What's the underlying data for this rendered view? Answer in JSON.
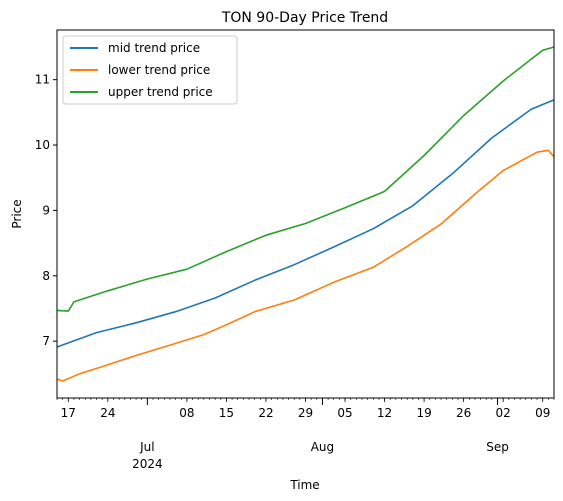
{
  "chart_data": {
    "type": "line",
    "title": "TON 90-Day Price Trend",
    "xlabel": "Time",
    "ylabel": "Price",
    "xlim": [
      "2024-06-15",
      "2024-09-11"
    ],
    "ylim": [
      6.13,
      11.76
    ],
    "yticks": [
      7,
      8,
      9,
      10,
      11
    ],
    "xticks_minor": [
      {
        "date": "2024-06-17",
        "label": "17"
      },
      {
        "date": "2024-06-24",
        "label": "24"
      },
      {
        "date": "2024-07-08",
        "label": "08"
      },
      {
        "date": "2024-07-15",
        "label": "15"
      },
      {
        "date": "2024-07-22",
        "label": "22"
      },
      {
        "date": "2024-07-29",
        "label": "29"
      },
      {
        "date": "2024-08-05",
        "label": "05"
      },
      {
        "date": "2024-08-12",
        "label": "12"
      },
      {
        "date": "2024-08-19",
        "label": "19"
      },
      {
        "date": "2024-08-26",
        "label": "26"
      },
      {
        "date": "2024-09-02",
        "label": "02"
      },
      {
        "date": "2024-09-09",
        "label": "09"
      }
    ],
    "xticks_major": [
      {
        "date": "2024-07-01",
        "label": "Jul",
        "sublabel": "2024"
      },
      {
        "date": "2024-08-01",
        "label": "Aug",
        "sublabel": ""
      },
      {
        "date": "2024-09-01",
        "label": "Sep",
        "sublabel": ""
      }
    ],
    "legend_position": "top-left",
    "grid": false,
    "series": [
      {
        "name": "mid trend price",
        "color": "#1f77b4",
        "points": [
          [
            "2024-06-15",
            6.91
          ],
          [
            "2024-06-22",
            7.13
          ],
          [
            "2024-06-29",
            7.28
          ],
          [
            "2024-07-06",
            7.45
          ],
          [
            "2024-07-13",
            7.66
          ],
          [
            "2024-07-20",
            7.93
          ],
          [
            "2024-07-27",
            8.17
          ],
          [
            "2024-08-03",
            8.44
          ],
          [
            "2024-08-10",
            8.72
          ],
          [
            "2024-08-17",
            9.07
          ],
          [
            "2024-08-24",
            9.56
          ],
          [
            "2024-08-31",
            10.11
          ],
          [
            "2024-09-07",
            10.55
          ],
          [
            "2024-09-11",
            10.69
          ]
        ]
      },
      {
        "name": "lower trend price",
        "color": "#ff7f0e",
        "points": [
          [
            "2024-06-15",
            6.42
          ],
          [
            "2024-06-16",
            6.39
          ],
          [
            "2024-06-19",
            6.5
          ],
          [
            "2024-06-23",
            6.61
          ],
          [
            "2024-06-29",
            6.78
          ],
          [
            "2024-07-05",
            6.94
          ],
          [
            "2024-07-11",
            7.1
          ],
          [
            "2024-07-15",
            7.25
          ],
          [
            "2024-07-20",
            7.45
          ],
          [
            "2024-07-27",
            7.63
          ],
          [
            "2024-08-03",
            7.9
          ],
          [
            "2024-08-10",
            8.13
          ],
          [
            "2024-08-16",
            8.45
          ],
          [
            "2024-08-22",
            8.79
          ],
          [
            "2024-08-28",
            9.25
          ],
          [
            "2024-09-02",
            9.61
          ],
          [
            "2024-09-08",
            9.89
          ],
          [
            "2024-09-10",
            9.92
          ],
          [
            "2024-09-11",
            9.82
          ]
        ]
      },
      {
        "name": "upper trend price",
        "color": "#2ca02c",
        "points": [
          [
            "2024-06-15",
            7.47
          ],
          [
            "2024-06-17",
            7.46
          ],
          [
            "2024-06-18",
            7.6
          ],
          [
            "2024-06-24",
            7.77
          ],
          [
            "2024-07-01",
            7.95
          ],
          [
            "2024-07-08",
            8.1
          ],
          [
            "2024-07-15",
            8.37
          ],
          [
            "2024-07-22",
            8.62
          ],
          [
            "2024-07-29",
            8.8
          ],
          [
            "2024-08-05",
            9.04
          ],
          [
            "2024-08-12",
            9.29
          ],
          [
            "2024-08-19",
            9.84
          ],
          [
            "2024-08-26",
            10.45
          ],
          [
            "2024-09-02",
            10.98
          ],
          [
            "2024-09-09",
            11.45
          ],
          [
            "2024-09-11",
            11.5
          ]
        ]
      }
    ]
  }
}
